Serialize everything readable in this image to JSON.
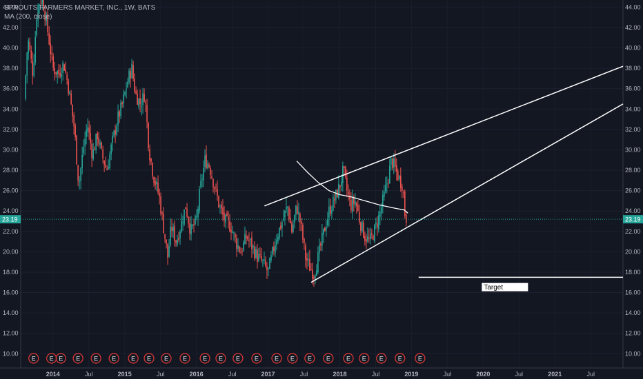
{
  "legend": {
    "symbol": "SPROUTS FARMERS MARKET, INC., 1W, BATS",
    "indicator": "MA (200, close)"
  },
  "colors": {
    "background": "#131722",
    "up": "#26a69a",
    "down": "#ef5350",
    "lines": "#ffffff",
    "last_price": "#26a69a",
    "axis_text": "#b2b5be",
    "earnings": "#e53935"
  },
  "chart_data": {
    "type": "candlestick",
    "y_axis": {
      "range": [
        8.6,
        44.7
      ],
      "ticks": [
        10,
        12,
        14,
        16,
        18,
        20,
        22,
        24,
        26,
        28,
        30,
        32,
        34,
        36,
        38,
        40,
        42,
        44
      ],
      "tick_labels": [
        "10.00",
        "12.00",
        "14.00",
        "16.00",
        "18.00",
        "20.00",
        "22.00",
        "24.00",
        "26.00",
        "28.00",
        "30.00",
        "32.00",
        "34.00",
        "36.00",
        "38.00",
        "40.00",
        "42.00",
        "44.00"
      ],
      "sides": [
        "left",
        "right"
      ]
    },
    "x_axis": {
      "range": [
        2013.55,
        2021.95
      ],
      "ticks": [
        {
          "t": 2014.0,
          "label": "2014"
        },
        {
          "t": 2014.5,
          "label": "Jul"
        },
        {
          "t": 2015.0,
          "label": "2015"
        },
        {
          "t": 2015.5,
          "label": "Jul"
        },
        {
          "t": 2016.0,
          "label": "2016"
        },
        {
          "t": 2016.5,
          "label": "Jul"
        },
        {
          "t": 2017.0,
          "label": "2017"
        },
        {
          "t": 2017.5,
          "label": "Jul"
        },
        {
          "t": 2018.0,
          "label": "2018"
        },
        {
          "t": 2018.5,
          "label": "Jul"
        },
        {
          "t": 2019.0,
          "label": "2019"
        },
        {
          "t": 2019.5,
          "label": "Jul"
        },
        {
          "t": 2020.0,
          "label": "2020"
        },
        {
          "t": 2020.5,
          "label": "Jul"
        },
        {
          "t": 2021.0,
          "label": "2021"
        },
        {
          "t": 2021.5,
          "label": "Jul"
        }
      ]
    },
    "price_path": [
      [
        2013.6,
        35.0
      ],
      [
        2013.65,
        41.0
      ],
      [
        2013.72,
        37.5
      ],
      [
        2013.78,
        44.0
      ],
      [
        2013.85,
        45.0
      ],
      [
        2013.92,
        42.0
      ],
      [
        2014.0,
        38.0
      ],
      [
        2014.08,
        37.5
      ],
      [
        2014.15,
        38.5
      ],
      [
        2014.22,
        36.0
      ],
      [
        2014.3,
        32.0
      ],
      [
        2014.36,
        26.5
      ],
      [
        2014.42,
        30.0
      ],
      [
        2014.48,
        32.5
      ],
      [
        2014.55,
        29.5
      ],
      [
        2014.62,
        31.5
      ],
      [
        2014.68,
        29.5
      ],
      [
        2014.75,
        28.0
      ],
      [
        2014.82,
        30.5
      ],
      [
        2014.9,
        33.0
      ],
      [
        2014.97,
        34.5
      ],
      [
        2015.05,
        37.0
      ],
      [
        2015.1,
        38.0
      ],
      [
        2015.15,
        35.5
      ],
      [
        2015.22,
        34.5
      ],
      [
        2015.28,
        35.5
      ],
      [
        2015.34,
        30.0
      ],
      [
        2015.4,
        27.5
      ],
      [
        2015.48,
        25.5
      ],
      [
        2015.55,
        22.0
      ],
      [
        2015.6,
        19.5
      ],
      [
        2015.65,
        22.5
      ],
      [
        2015.72,
        21.0
      ],
      [
        2015.78,
        22.5
      ],
      [
        2015.85,
        24.5
      ],
      [
        2015.92,
        22.0
      ],
      [
        2016.0,
        23.0
      ],
      [
        2016.05,
        26.0
      ],
      [
        2016.12,
        29.0
      ],
      [
        2016.18,
        28.5
      ],
      [
        2016.25,
        26.5
      ],
      [
        2016.32,
        24.5
      ],
      [
        2016.4,
        23.0
      ],
      [
        2016.48,
        22.5
      ],
      [
        2016.55,
        21.0
      ],
      [
        2016.62,
        20.0
      ],
      [
        2016.7,
        21.5
      ],
      [
        2016.78,
        20.5
      ],
      [
        2016.85,
        19.5
      ],
      [
        2016.92,
        19.0
      ],
      [
        2017.0,
        18.0
      ],
      [
        2017.05,
        19.5
      ],
      [
        2017.12,
        21.5
      ],
      [
        2017.2,
        23.0
      ],
      [
        2017.27,
        24.5
      ],
      [
        2017.33,
        22.0
      ],
      [
        2017.4,
        24.5
      ],
      [
        2017.46,
        22.5
      ],
      [
        2017.52,
        19.5
      ],
      [
        2017.58,
        18.5
      ],
      [
        2017.64,
        17.8
      ],
      [
        2017.7,
        19.5
      ],
      [
        2017.78,
        22.0
      ],
      [
        2017.85,
        24.0
      ],
      [
        2017.92,
        25.0
      ],
      [
        2018.0,
        26.5
      ],
      [
        2018.05,
        28.0
      ],
      [
        2018.1,
        26.0
      ],
      [
        2018.15,
        24.5
      ],
      [
        2018.22,
        25.0
      ],
      [
        2018.28,
        23.0
      ],
      [
        2018.35,
        21.5
      ],
      [
        2018.42,
        21.0
      ],
      [
        2018.48,
        22.0
      ],
      [
        2018.55,
        23.5
      ],
      [
        2018.62,
        25.5
      ],
      [
        2018.68,
        27.5
      ],
      [
        2018.72,
        29.0
      ],
      [
        2018.78,
        28.0
      ],
      [
        2018.84,
        27.0
      ],
      [
        2018.88,
        26.5
      ],
      [
        2018.91,
        23.5
      ],
      [
        2018.94,
        23.19
      ]
    ],
    "moving_average_200": [
      [
        2017.4,
        28.9
      ],
      [
        2017.55,
        27.8
      ],
      [
        2017.7,
        26.8
      ],
      [
        2017.85,
        26.0
      ],
      [
        2018.0,
        25.6
      ],
      [
        2018.15,
        25.4
      ],
      [
        2018.35,
        25.0
      ],
      [
        2018.55,
        24.6
      ],
      [
        2018.75,
        24.3
      ],
      [
        2018.9,
        24.1
      ],
      [
        2018.95,
        23.8
      ]
    ],
    "trend_lines": [
      {
        "from": [
          2016.95,
          24.5
        ],
        "to": [
          2021.95,
          38.2
        ]
      },
      {
        "from": [
          2017.6,
          17.0
        ],
        "to": [
          2021.95,
          34.5
        ]
      },
      {
        "from": [
          2019.1,
          17.5
        ],
        "to": [
          2021.95,
          17.5
        ]
      }
    ],
    "last_price": {
      "value": 23.19,
      "label": "23.19"
    },
    "target_label": {
      "text": "Target",
      "t": 2020.0,
      "price": 16.6
    },
    "earnings_markers": {
      "label": "E",
      "times": [
        2013.73,
        2013.98,
        2014.11,
        2014.35,
        2014.6,
        2014.85,
        2015.12,
        2015.34,
        2015.58,
        2015.84,
        2016.12,
        2016.34,
        2016.58,
        2016.84,
        2017.12,
        2017.34,
        2017.58,
        2017.84,
        2018.12,
        2018.34,
        2018.58,
        2018.84,
        2019.12
      ]
    }
  }
}
